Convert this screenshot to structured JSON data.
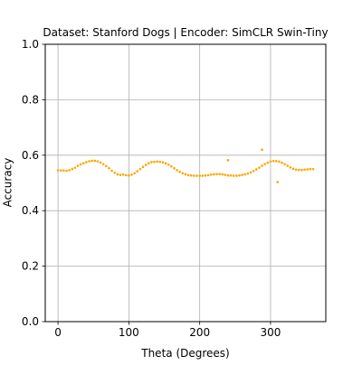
{
  "chart_data": {
    "type": "scatter",
    "title": "Dataset: Stanford Dogs | Encoder: SimCLR Swin-Tiny",
    "xlabel": "Theta (Degrees)",
    "ylabel": "Accuracy",
    "xlim": [
      -18,
      378
    ],
    "ylim": [
      0.0,
      1.0
    ],
    "x_ticks": [
      0,
      100,
      200,
      300
    ],
    "y_ticks": [
      0.0,
      0.2,
      0.4,
      0.6,
      0.8,
      1.0
    ],
    "x_tick_labels": [
      "0",
      "100",
      "200",
      "300"
    ],
    "y_tick_labels": [
      "0.0",
      "0.2",
      "0.4",
      "0.6",
      "0.8",
      "1.0"
    ],
    "grid": true,
    "point_color": "#ffa500",
    "points": {
      "x": [
        0,
        4,
        8,
        12,
        16,
        20,
        24,
        28,
        32,
        36,
        40,
        44,
        48,
        52,
        56,
        60,
        64,
        68,
        72,
        76,
        80,
        84,
        88,
        92,
        96,
        100,
        104,
        108,
        112,
        116,
        120,
        124,
        128,
        132,
        136,
        140,
        144,
        148,
        152,
        156,
        160,
        164,
        168,
        172,
        176,
        180,
        184,
        188,
        192,
        196,
        200,
        204,
        208,
        212,
        216,
        220,
        224,
        228,
        232,
        236,
        240,
        244,
        248,
        252,
        256,
        260,
        264,
        268,
        272,
        276,
        280,
        284,
        288,
        292,
        296,
        300,
        304,
        308,
        312,
        316,
        320,
        324,
        328,
        332,
        336,
        340,
        344,
        348,
        352,
        356,
        360,
        240,
        288,
        310
      ],
      "y": [
        0.546,
        0.545,
        0.545,
        0.544,
        0.546,
        0.55,
        0.555,
        0.562,
        0.567,
        0.571,
        0.575,
        0.578,
        0.58,
        0.58,
        0.578,
        0.574,
        0.568,
        0.561,
        0.553,
        0.544,
        0.537,
        0.531,
        0.529,
        0.53,
        0.528,
        0.527,
        0.53,
        0.535,
        0.542,
        0.55,
        0.558,
        0.565,
        0.571,
        0.575,
        0.576,
        0.577,
        0.576,
        0.574,
        0.571,
        0.566,
        0.56,
        0.553,
        0.546,
        0.54,
        0.535,
        0.531,
        0.528,
        0.527,
        0.526,
        0.526,
        0.526,
        0.526,
        0.527,
        0.528,
        0.53,
        0.531,
        0.532,
        0.532,
        0.531,
        0.529,
        0.527,
        0.527,
        0.526,
        0.526,
        0.527,
        0.529,
        0.531,
        0.534,
        0.538,
        0.543,
        0.549,
        0.555,
        0.562,
        0.568,
        0.573,
        0.577,
        0.579,
        0.579,
        0.577,
        0.573,
        0.568,
        0.562,
        0.556,
        0.551,
        0.548,
        0.547,
        0.547,
        0.548,
        0.549,
        0.55,
        0.55,
        0.582,
        0.62,
        0.503
      ]
    }
  }
}
